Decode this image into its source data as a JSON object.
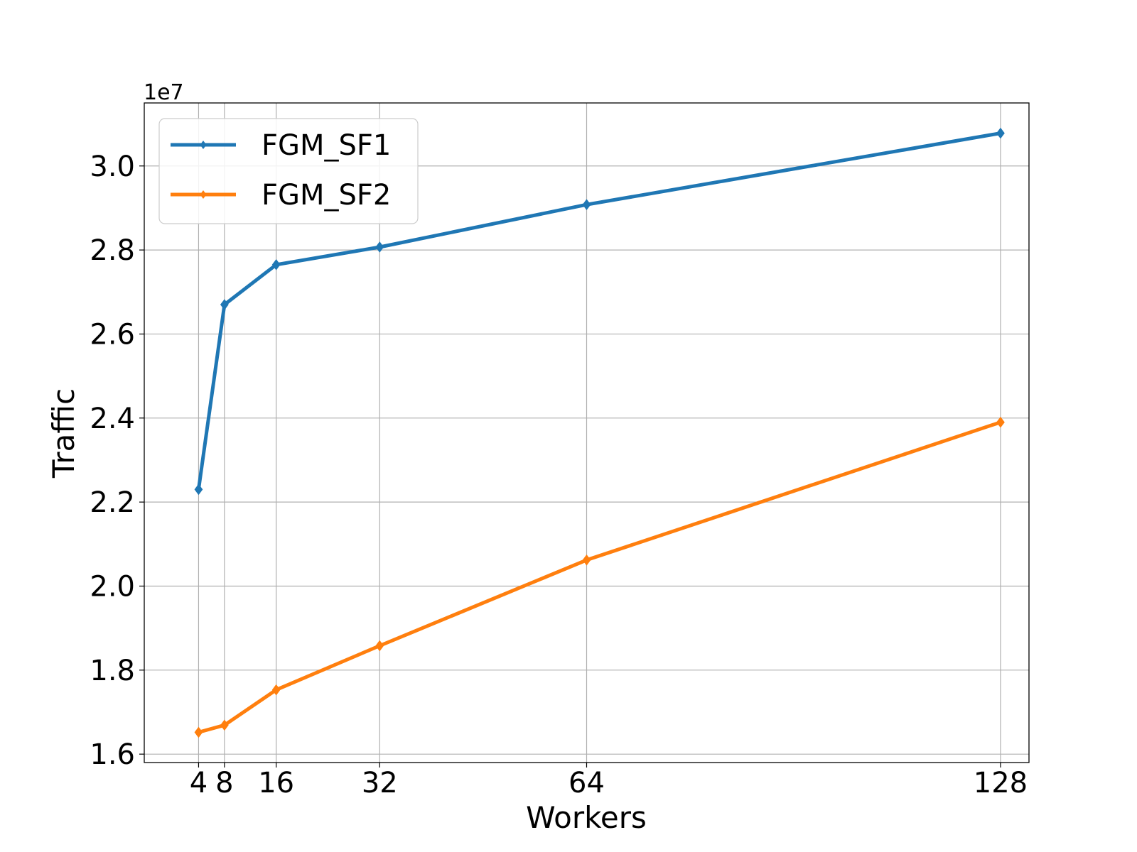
{
  "chart_data": {
    "type": "line",
    "title": "",
    "xlabel": "Workers",
    "ylabel": "Traffic",
    "y_offset_label": "1e7",
    "x": [
      4,
      8,
      16,
      32,
      64,
      128
    ],
    "x_tick_labels": [
      "4",
      "8",
      "16",
      "32",
      "64",
      "128"
    ],
    "y_ticks": [
      1.6,
      1.8,
      2.0,
      2.2,
      2.4,
      2.6,
      2.8,
      3.0
    ],
    "y_tick_labels": [
      "1.6",
      "1.8",
      "2.0",
      "2.2",
      "2.4",
      "2.6",
      "2.8",
      "3.0"
    ],
    "xlim": [
      -4.4,
      132.4
    ],
    "ylim": [
      1.58,
      3.15
    ],
    "y_scale": 10000000,
    "grid": true,
    "legend_position": "top-left",
    "series": [
      {
        "name": "FGM_SF1",
        "color": "#1f77b4",
        "marker": "diamond",
        "values": [
          2.23,
          2.67,
          2.765,
          2.807,
          2.908,
          3.078
        ]
      },
      {
        "name": "FGM_SF2",
        "color": "#ff7f0e",
        "marker": "diamond",
        "values": [
          1.652,
          1.669,
          1.753,
          1.858,
          2.062,
          2.39
        ]
      }
    ]
  }
}
